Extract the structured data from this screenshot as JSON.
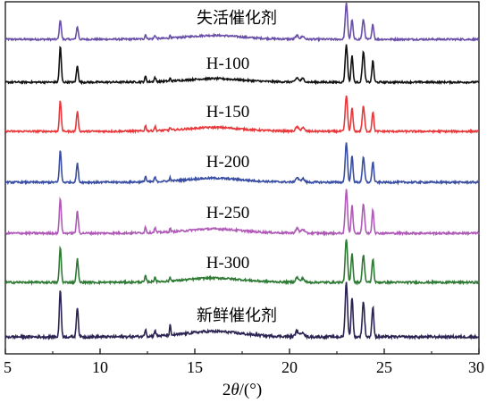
{
  "chart_data": {
    "type": "line",
    "title": "",
    "xlabel": "2θ/(°)",
    "xlabel_parts": {
      "prefix": "2",
      "theta": "θ",
      "suffix": "/(°)"
    },
    "ylabel": "",
    "xlim": [
      5,
      30
    ],
    "xticks": [
      5,
      10,
      15,
      20,
      25,
      30
    ],
    "yticks_shown": false,
    "grid": false,
    "legend": "none",
    "plot_style": "stacked-offset",
    "peak_positions_2theta": [
      7.9,
      8.8,
      12.4,
      12.9,
      13.7,
      16.0,
      20.4,
      20.7,
      23.0,
      23.3,
      23.9,
      24.4
    ],
    "series": [
      {
        "name": "失活催化剂",
        "color": "#6a4fa8",
        "peak_heights": [
          0.55,
          0.35,
          0.12,
          0.1,
          0.08,
          0.06,
          0.1,
          0.08,
          1.0,
          0.55,
          0.55,
          0.42
        ]
      },
      {
        "name": "H-100",
        "color": "#111111",
        "peak_heights": [
          1.0,
          0.45,
          0.15,
          0.12,
          0.08,
          0.05,
          0.12,
          0.1,
          1.05,
          0.75,
          0.85,
          0.6
        ]
      },
      {
        "name": "H-150",
        "color": "#e8383b",
        "peak_heights": [
          0.85,
          0.55,
          0.15,
          0.12,
          0.08,
          0.06,
          0.12,
          0.1,
          1.0,
          0.65,
          0.7,
          0.55
        ]
      },
      {
        "name": "H-200",
        "color": "#3a4ea3",
        "peak_heights": [
          0.85,
          0.5,
          0.15,
          0.12,
          0.1,
          0.06,
          0.12,
          0.1,
          1.05,
          0.7,
          0.65,
          0.55
        ]
      },
      {
        "name": "H-250",
        "color": "#b05ab8",
        "peak_heights": [
          0.9,
          0.55,
          0.15,
          0.12,
          0.1,
          0.06,
          0.12,
          0.1,
          1.1,
          0.7,
          0.75,
          0.6
        ]
      },
      {
        "name": "H-300",
        "color": "#2e7a34",
        "peak_heights": [
          0.9,
          0.6,
          0.15,
          0.12,
          0.1,
          0.06,
          0.12,
          0.1,
          1.1,
          0.75,
          0.7,
          0.6
        ]
      },
      {
        "name": "新鲜催化剂",
        "color": "#2b2452",
        "peak_heights": [
          0.95,
          0.6,
          0.15,
          0.12,
          0.2,
          0.06,
          0.12,
          0.1,
          1.1,
          0.8,
          0.7,
          0.6
        ]
      }
    ]
  }
}
